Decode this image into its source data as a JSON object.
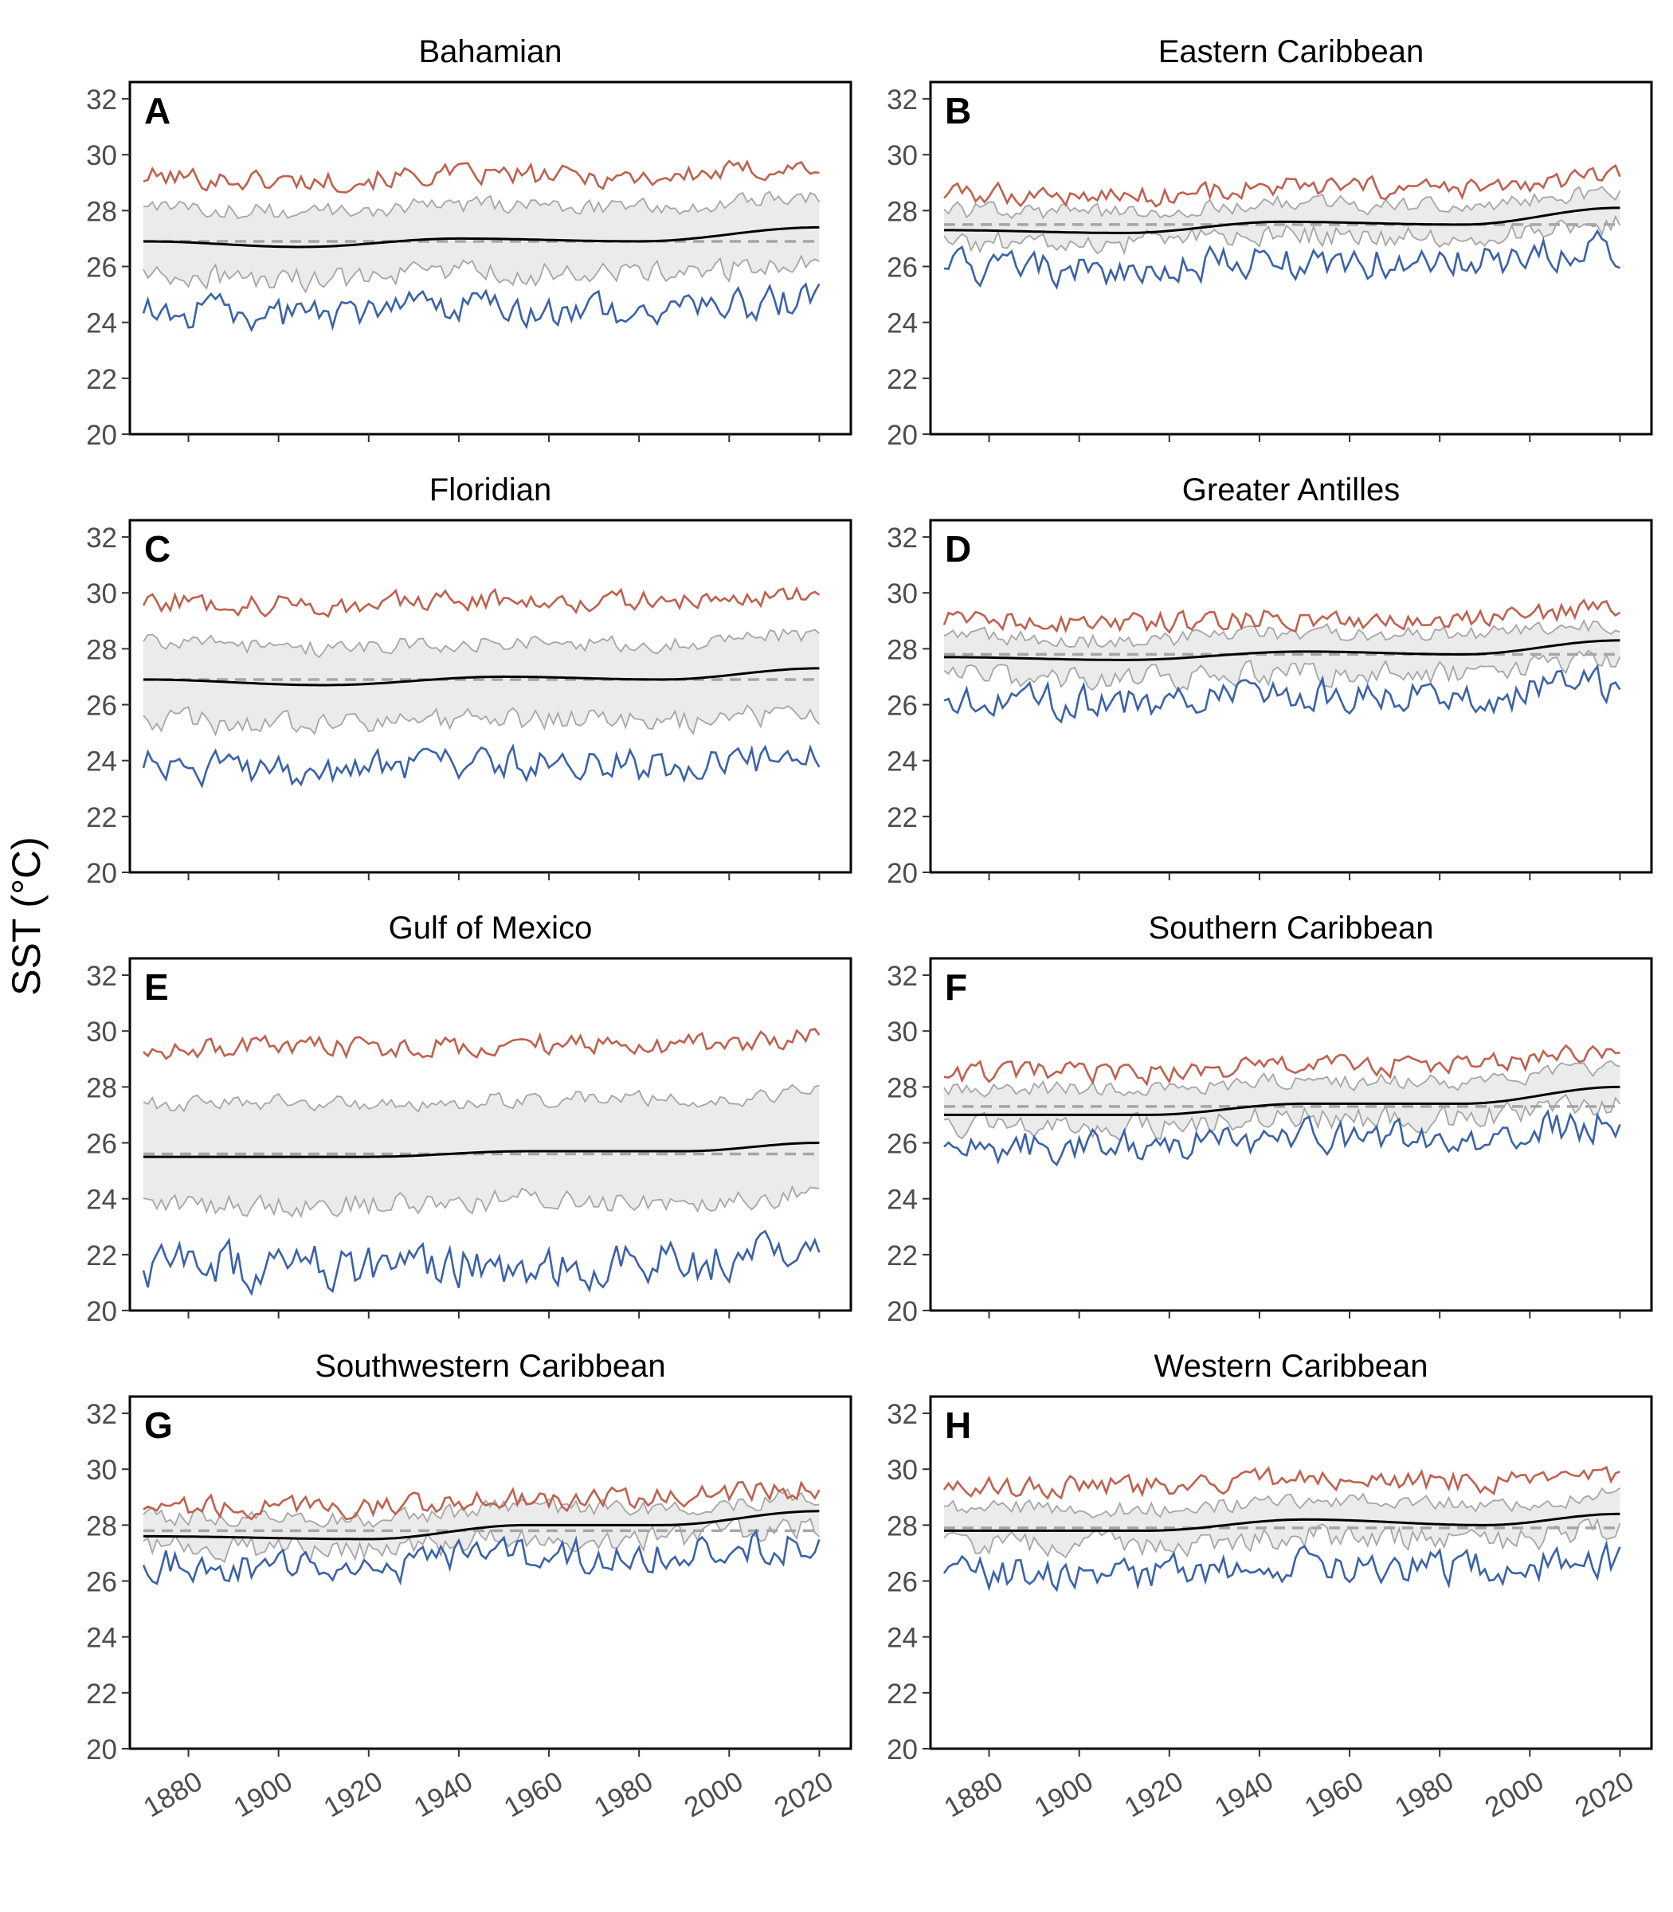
{
  "figure": {
    "ylabel": "SST (°C)",
    "colors": {
      "max_line": "#c0604e",
      "min_line": "#3a62a8",
      "band_fill": "#ebebeb",
      "band_line": "#a6a6a6",
      "trend_line": "#000000",
      "baseline_dash": "#a6a6a6",
      "frame": "#000000"
    },
    "x_ticks": [
      1880,
      1900,
      1920,
      1940,
      1960,
      1980,
      2000,
      2020
    ],
    "y_ticks": [
      20,
      22,
      24,
      26,
      28,
      30,
      32
    ]
  },
  "chart_data": [
    {
      "type": "line",
      "letter": "A",
      "title": "Bahamian",
      "ylim": [
        20,
        32.6
      ],
      "xlim": [
        1867,
        2027
      ],
      "baseline": 26.9,
      "max_mean": 29.2,
      "min_mean": 24.4,
      "band_upper": 28.1,
      "band_lower": 25.7,
      "trend": {
        "x": [
          1870,
          1905,
          1940,
          1980,
          2020
        ],
        "y": [
          26.9,
          26.7,
          27.0,
          26.9,
          27.4
        ]
      }
    },
    {
      "type": "line",
      "letter": "B",
      "title": "Eastern Caribbean",
      "ylim": [
        20,
        32.6
      ],
      "xlim": [
        1867,
        2027
      ],
      "baseline": 27.5,
      "max_mean": 28.6,
      "min_mean": 26.0,
      "band_upper": 28.0,
      "band_lower": 26.9,
      "trend": {
        "x": [
          1870,
          1910,
          1945,
          1985,
          2020
        ],
        "y": [
          27.3,
          27.2,
          27.6,
          27.5,
          28.1
        ]
      }
    },
    {
      "type": "line",
      "letter": "C",
      "title": "Floridian",
      "ylim": [
        20,
        32.6
      ],
      "xlim": [
        1867,
        2027
      ],
      "baseline": 26.9,
      "max_mean": 29.7,
      "min_mean": 23.8,
      "band_upper": 28.2,
      "band_lower": 25.4,
      "trend": {
        "x": [
          1870,
          1910,
          1950,
          1985,
          2020
        ],
        "y": [
          26.9,
          26.7,
          27.0,
          26.9,
          27.3
        ]
      }
    },
    {
      "type": "line",
      "letter": "D",
      "title": "Greater Antilles",
      "ylim": [
        20,
        32.6
      ],
      "xlim": [
        1867,
        2027
      ],
      "baseline": 27.8,
      "max_mean": 29.0,
      "min_mean": 26.2,
      "band_upper": 28.4,
      "band_lower": 27.0,
      "trend": {
        "x": [
          1870,
          1910,
          1950,
          1985,
          2020
        ],
        "y": [
          27.7,
          27.6,
          27.9,
          27.8,
          28.3
        ]
      }
    },
    {
      "type": "line",
      "letter": "E",
      "title": "Gulf of Mexico",
      "ylim": [
        20,
        32.6
      ],
      "xlim": [
        1867,
        2027
      ],
      "baseline": 25.6,
      "max_mean": 29.4,
      "min_mean": 21.5,
      "band_upper": 27.4,
      "band_lower": 23.8,
      "trend": {
        "x": [
          1870,
          1920,
          1955,
          1990,
          2020
        ],
        "y": [
          25.5,
          25.5,
          25.7,
          25.7,
          26.0
        ]
      }
    },
    {
      "type": "line",
      "letter": "F",
      "title": "Southern Caribbean",
      "ylim": [
        20,
        32.6
      ],
      "xlim": [
        1867,
        2027
      ],
      "baseline": 27.3,
      "max_mean": 28.5,
      "min_mean": 25.9,
      "band_upper": 27.9,
      "band_lower": 26.6,
      "trend": {
        "x": [
          1870,
          1915,
          1950,
          1985,
          2020
        ],
        "y": [
          27.0,
          27.0,
          27.4,
          27.4,
          28.0
        ]
      }
    },
    {
      "type": "line",
      "letter": "G",
      "title": "Southwestern Caribbean",
      "ylim": [
        20,
        32.6
      ],
      "xlim": [
        1867,
        2027
      ],
      "baseline": 27.8,
      "max_mean": 28.7,
      "min_mean": 26.6,
      "band_upper": 28.3,
      "band_lower": 27.2,
      "trend": {
        "x": [
          1870,
          1920,
          1955,
          1985,
          2020
        ],
        "y": [
          27.6,
          27.5,
          28.0,
          28.0,
          28.5
        ]
      }
    },
    {
      "type": "line",
      "letter": "H",
      "title": "Western Caribbean",
      "ylim": [
        20,
        32.6
      ],
      "xlim": [
        1867,
        2027
      ],
      "baseline": 27.9,
      "max_mean": 29.4,
      "min_mean": 26.3,
      "band_upper": 28.6,
      "band_lower": 27.3,
      "trend": {
        "x": [
          1870,
          1915,
          1950,
          1990,
          2020
        ],
        "y": [
          27.8,
          27.8,
          28.2,
          28.0,
          28.4
        ]
      }
    }
  ]
}
